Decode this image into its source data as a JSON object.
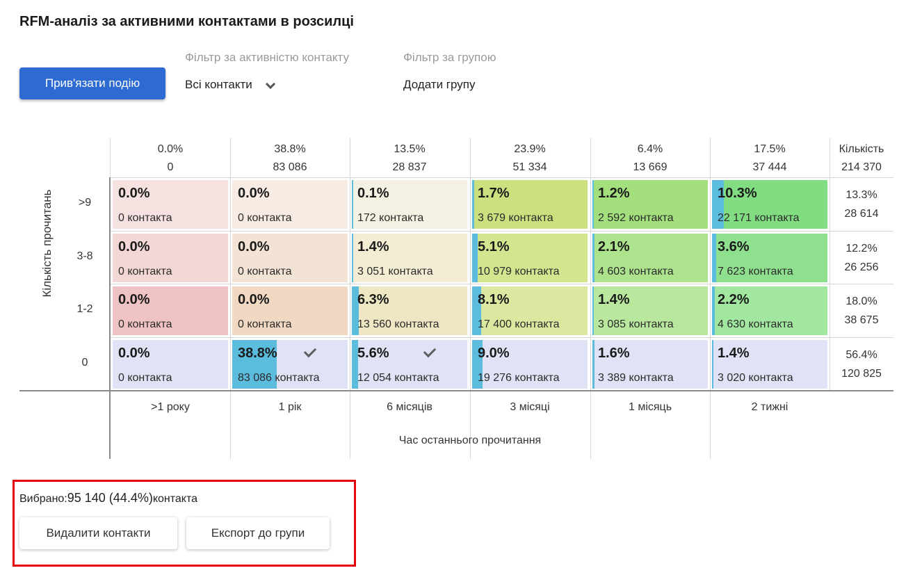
{
  "title": "RFM-аналіз за активними контактами в розсилці",
  "toolbar": {
    "bind_event_label": "Прив'язати подію",
    "activity_filter": {
      "label": "Фільтр за активністю контакту",
      "value": "Всі контакти",
      "icon": "chevron-down-icon"
    },
    "group_filter": {
      "label": "Фільтр за групою",
      "value": "Додати групу"
    }
  },
  "colors": {
    "primary": "#2d6bd3",
    "bar": "#5bbcdd",
    "highlight_border": "#e8000b"
  },
  "matrix": {
    "y_axis_label": "Кількість прочитань",
    "x_axis_label": "Час останнього прочитання",
    "total_header": {
      "label": "Кількість",
      "value": "214 370"
    },
    "columns": [
      {
        "label": ">1 року",
        "pct": "0.0%",
        "count": "0"
      },
      {
        "label": "1 рік",
        "pct": "38.8%",
        "count": "83 086"
      },
      {
        "label": "6 місяців",
        "pct": "13.5%",
        "count": "28 837"
      },
      {
        "label": "3 місяці",
        "pct": "23.9%",
        "count": "51 334"
      },
      {
        "label": "1 місяць",
        "pct": "6.4%",
        "count": "13 669"
      },
      {
        "label": "2 тижні",
        "pct": "17.5%",
        "count": "37 444"
      }
    ],
    "rows": [
      {
        "label": ">9",
        "total_pct": "13.3%",
        "total_count": "28 614",
        "cells": [
          {
            "pct": "0.0%",
            "count": "0 контакта",
            "value": 0.0,
            "color": "#f6e1e1",
            "selected": false
          },
          {
            "pct": "0.0%",
            "count": "0 контакта",
            "value": 0.0,
            "color": "#f7ebe3",
            "selected": false
          },
          {
            "pct": "0.1%",
            "count": "172 контакта",
            "value": 0.1,
            "color": "#f5f1e2",
            "selected": false
          },
          {
            "pct": "1.7%",
            "count": "3 679 контакта",
            "value": 1.7,
            "color": "#cde07f",
            "selected": false
          },
          {
            "pct": "1.2%",
            "count": "2 592 контакта",
            "value": 1.2,
            "color": "#a3df7d",
            "selected": false
          },
          {
            "pct": "10.3%",
            "count": "22 171 контакта",
            "value": 10.3,
            "color": "#81dc82",
            "selected": false
          }
        ]
      },
      {
        "label": "3-8",
        "total_pct": "12.2%",
        "total_count": "26 256",
        "cells": [
          {
            "pct": "0.0%",
            "count": "0 контакта",
            "value": 0.0,
            "color": "#f3d7d6",
            "selected": false
          },
          {
            "pct": "0.0%",
            "count": "0 контакта",
            "value": 0.0,
            "color": "#f2e3d4",
            "selected": false
          },
          {
            "pct": "1.4%",
            "count": "3 051 контакта",
            "value": 1.4,
            "color": "#f2edd3",
            "selected": false
          },
          {
            "pct": "5.1%",
            "count": "10 979 контакта",
            "value": 5.1,
            "color": "#d3e58f",
            "selected": false
          },
          {
            "pct": "2.1%",
            "count": "4 603 контакта",
            "value": 2.1,
            "color": "#ace38c",
            "selected": false
          },
          {
            "pct": "3.6%",
            "count": "7 623 контакта",
            "value": 3.6,
            "color": "#8fe08e",
            "selected": false
          }
        ]
      },
      {
        "label": "1-2",
        "total_pct": "18.0%",
        "total_count": "38 675",
        "cells": [
          {
            "pct": "0.0%",
            "count": "0 контакта",
            "value": 0.0,
            "color": "#efc3c3",
            "selected": false
          },
          {
            "pct": "0.0%",
            "count": "0 контакта",
            "value": 0.0,
            "color": "#f0d8c2",
            "selected": false
          },
          {
            "pct": "6.3%",
            "count": "13 560 контакта",
            "value": 6.3,
            "color": "#efe7c4",
            "selected": false
          },
          {
            "pct": "8.1%",
            "count": "17 400 контакта",
            "value": 8.1,
            "color": "#dae99f",
            "selected": false
          },
          {
            "pct": "1.4%",
            "count": "3 085 контакта",
            "value": 1.4,
            "color": "#b9e79d",
            "selected": false
          },
          {
            "pct": "2.2%",
            "count": "4 630 контакта",
            "value": 2.2,
            "color": "#a1e79f",
            "selected": false
          }
        ]
      },
      {
        "label": "0",
        "total_pct": "56.4%",
        "total_count": "120 825",
        "cells": [
          {
            "pct": "0.0%",
            "count": "0 контакта",
            "value": 0.0,
            "color": "#e0e3f5",
            "selected": false
          },
          {
            "pct": "38.8%",
            "count": "83 086 контакта",
            "value": 38.8,
            "color": "#e0e3f5",
            "selected": true
          },
          {
            "pct": "5.6%",
            "count": "12 054 контакта",
            "value": 5.6,
            "color": "#e0e3f5",
            "selected": true
          },
          {
            "pct": "9.0%",
            "count": "19 276 контакта",
            "value": 9.0,
            "color": "#e0e3f5",
            "selected": false
          },
          {
            "pct": "1.6%",
            "count": "3 389 контакта",
            "value": 1.6,
            "color": "#e0e3f5",
            "selected": false
          },
          {
            "pct": "1.4%",
            "count": "3 020 контакта",
            "value": 1.4,
            "color": "#e0e3f5",
            "selected": false
          }
        ]
      }
    ]
  },
  "selection": {
    "prefix": "Вибрано:",
    "value": "95 140 (44.4%)",
    "suffix": "контакта",
    "delete_label": "Видалити контакти",
    "export_label": "Експорт до групи"
  }
}
